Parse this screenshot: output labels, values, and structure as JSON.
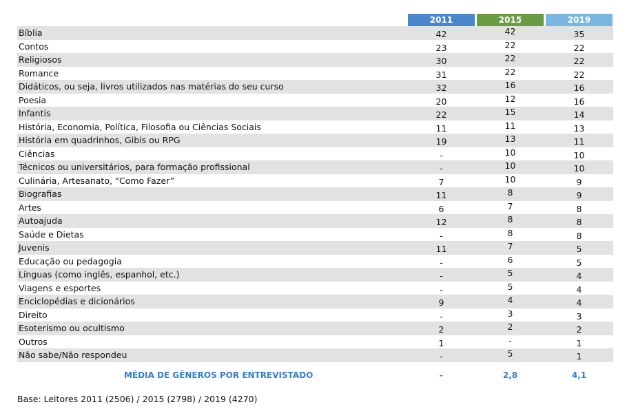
{
  "table": {
    "columns": [
      "2011",
      "2015",
      "2019"
    ],
    "rows": [
      [
        "Bíblia",
        42,
        42,
        35
      ],
      [
        "Contos",
        23,
        22,
        22
      ],
      [
        "Religiosos",
        30,
        22,
        22
      ],
      [
        "Romance",
        31,
        22,
        22
      ],
      [
        "Didáticos, ou seja, livros utilizados nas matérias do seu curso",
        32,
        16,
        16
      ],
      [
        "Poesia",
        20,
        12,
        16
      ],
      [
        "Infantis",
        22,
        15,
        14
      ],
      [
        "História, Economia, Política, Filosofia ou Ciências Sociais",
        11,
        11,
        13
      ],
      [
        "História em quadrinhos, Gibis ou RPG",
        19,
        13,
        11
      ],
      [
        "Ciências",
        "-",
        10,
        10
      ],
      [
        "Técnicos ou universitários, para formação profissional",
        "-",
        10,
        10
      ],
      [
        "Culinária, Artesanato, “Como Fazer”",
        7,
        10,
        9
      ],
      [
        "Biografias",
        11,
        8,
        9
      ],
      [
        "Artes",
        6,
        7,
        8
      ],
      [
        "Autoajuda",
        12,
        8,
        8
      ],
      [
        "Saúde e Dietas",
        "-",
        8,
        8
      ],
      [
        "Juvenis",
        11,
        7,
        5
      ],
      [
        "Educação ou pedagogia",
        "-",
        6,
        5
      ],
      [
        "Línguas (como inglês, espanhol, etc.)",
        "-",
        5,
        4
      ],
      [
        "Viagens e esportes",
        "-",
        5,
        4
      ],
      [
        "Enciclopédias e dicionários",
        9,
        4,
        4
      ],
      [
        "Direito",
        "-",
        3,
        3
      ],
      [
        "Esoterismo ou ocultismo",
        2,
        2,
        2
      ],
      [
        "Outros",
        1,
        "-",
        1
      ],
      [
        "Não sabe/Não respondeu",
        "-",
        5,
        1
      ]
    ],
    "average": [
      "MÉDIA DE GÊNEROS POR ENTREVISTADO",
      "-",
      "2,8",
      "4,1"
    ]
  },
  "footer": "Base: Leitores 2011 (2506) / 2015 (2798) / 2019 (4270)"
}
